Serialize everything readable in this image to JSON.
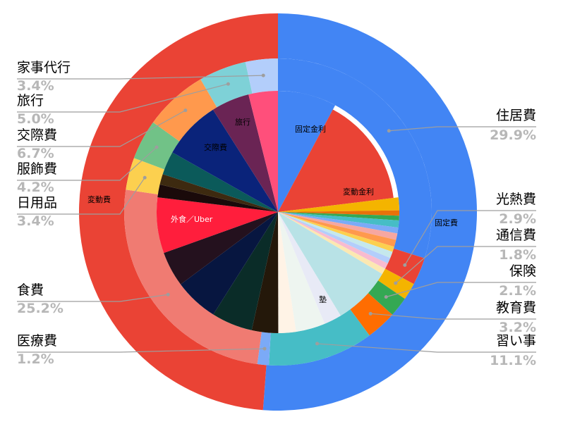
{
  "chart_data": {
    "type": "pie",
    "outer_ring": [
      {
        "label": "住居費",
        "pct": "29.9%",
        "value": 29.9,
        "color": "#4285f4"
      },
      {
        "label": "光熱費",
        "pct": "2.9%",
        "value": 2.9,
        "color": "#ea4335"
      },
      {
        "label": "通信費",
        "pct": "1.8%",
        "value": 1.8,
        "color": "#f4b400"
      },
      {
        "label": "保険",
        "pct": "2.1%",
        "value": 2.1,
        "color": "#34a853"
      },
      {
        "label": "教育費",
        "pct": "3.2%",
        "value": 3.2,
        "color": "#ff6d01"
      },
      {
        "label": "習い事",
        "pct": "11.1%",
        "value": 11.1,
        "color": "#46bdc6"
      },
      {
        "label": "医療費",
        "pct": "1.2%",
        "value": 1.2,
        "color": "#7baaf7"
      },
      {
        "label": "食費",
        "pct": "25.2%",
        "value": 25.2,
        "color": "#f07b72"
      },
      {
        "label": "日用品",
        "pct": "3.4%",
        "value": 3.4,
        "color": "#fcd04f"
      },
      {
        "label": "服飾費",
        "pct": "4.2%",
        "value": 4.2,
        "color": "#71c287"
      },
      {
        "label": "交際費",
        "pct": "6.7%",
        "value": 6.7,
        "color": "#ff994d"
      },
      {
        "label": "旅行",
        "pct": "5.0%",
        "value": 5.0,
        "color": "#7ed1d7"
      },
      {
        "label": "家事代行",
        "pct": "3.4%",
        "value": 3.4,
        "color": "#b3cefb"
      }
    ],
    "group_ring": [
      {
        "label": "固定費",
        "value": 51.2,
        "color": "#4285f4"
      },
      {
        "label": "変動費",
        "value": 48.8,
        "color": "#ea4335"
      }
    ],
    "inner_ring_labels": {
      "fixed_interest": "固定金利",
      "variable_interest": "変動金利",
      "juku": "塾",
      "eating_out": "外食／Uber",
      "social": "交際費",
      "travel": "旅行"
    }
  }
}
